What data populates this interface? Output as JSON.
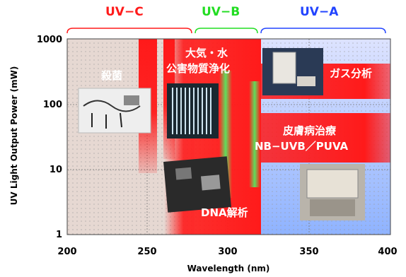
{
  "chart_data": {
    "type": "area",
    "xlabel": "Wavelength (nm)",
    "ylabel": "UV Light Output Power (mW)",
    "xlim": [
      200,
      400
    ],
    "ylim": [
      1,
      1000
    ],
    "y_scale": "log",
    "grid": true,
    "x_ticks": [
      "200",
      "250",
      "300",
      "350",
      "400"
    ],
    "y_ticks": [
      "1",
      "10",
      "100",
      "1000"
    ],
    "bands": [
      {
        "label": "UV−C",
        "range": [
          200,
          280
        ],
        "color": "#ff2020"
      },
      {
        "label": "UV−B",
        "range": [
          280,
          320
        ],
        "color": "#22dd22"
      },
      {
        "label": "UV−A",
        "range": [
          320,
          400
        ],
        "color": "#2244ff"
      }
    ],
    "applications": [
      {
        "label": "殺菌",
        "range": [
          240,
          260
        ]
      },
      {
        "label": "大気・水",
        "label2": "公害物質浄化",
        "range": [
          280,
          320
        ]
      },
      {
        "label": "ガス分析",
        "range": [
          320,
          400
        ]
      },
      {
        "label": "皮膚病治療",
        "label2": "NB−UVB／PUVA",
        "range": [
          305,
          400
        ]
      },
      {
        "label": "DNA解析",
        "range": [
          280,
          320
        ]
      }
    ]
  }
}
